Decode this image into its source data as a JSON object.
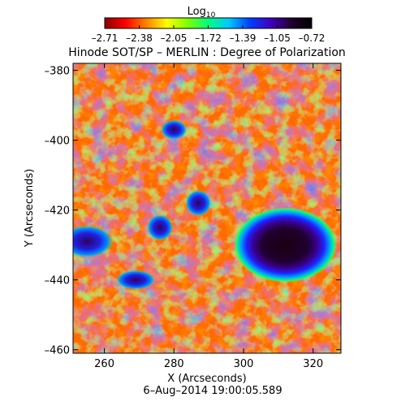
{
  "chart_data": {
    "type": "heatmap",
    "title": "Hinode SOT/SP – MERLIN : Degree of Polarization",
    "colorbar": {
      "label": "Log",
      "label_sub": "10",
      "ticks": [
        "–2.71",
        "–2.38",
        "–2.05",
        "–1.72",
        "–1.39",
        "–1.05",
        "–0.72"
      ],
      "range": [
        -2.71,
        -0.72
      ],
      "colormap": [
        "#8b0000",
        "#ff0000",
        "#ff8000",
        "#ffff00",
        "#80ff00",
        "#00ff80",
        "#00c8ff",
        "#0040ff",
        "#4000c0",
        "#200030",
        "#000000"
      ]
    },
    "xlabel": "X (Arcseconds)",
    "ylabel": "Y (Arcseconds)",
    "xlim": [
      251,
      328
    ],
    "ylim": [
      -461,
      -378
    ],
    "xticks": [
      260,
      280,
      300,
      320
    ],
    "yticks": [
      -380,
      -400,
      -420,
      -440,
      -460
    ],
    "xtick_labels": [
      "260",
      "280",
      "300",
      "320"
    ],
    "ytick_labels": [
      "–380",
      "–400",
      "–420",
      "–440",
      "–460"
    ],
    "features": [
      {
        "name": "sunspot",
        "x": 312,
        "y": -430,
        "rx": 11,
        "ry": 8,
        "value": -0.72
      },
      {
        "name": "pore",
        "x": 255,
        "y": -429,
        "rx": 4,
        "ry": 2.5,
        "value": -1.05
      },
      {
        "name": "pore",
        "x": 276,
        "y": -425,
        "rx": 2,
        "ry": 2,
        "value": -1.2
      },
      {
        "name": "pore",
        "x": 287,
        "y": -418,
        "rx": 2,
        "ry": 2,
        "value": -1.2
      },
      {
        "name": "pore",
        "x": 280,
        "y": -397,
        "rx": 2,
        "ry": 1.5,
        "value": -1.3
      },
      {
        "name": "pore",
        "x": 269,
        "y": -440,
        "rx": 3,
        "ry": 1.5,
        "value": -1.3
      }
    ],
    "footer": "6–Aug–2014 19:00:05.589"
  }
}
